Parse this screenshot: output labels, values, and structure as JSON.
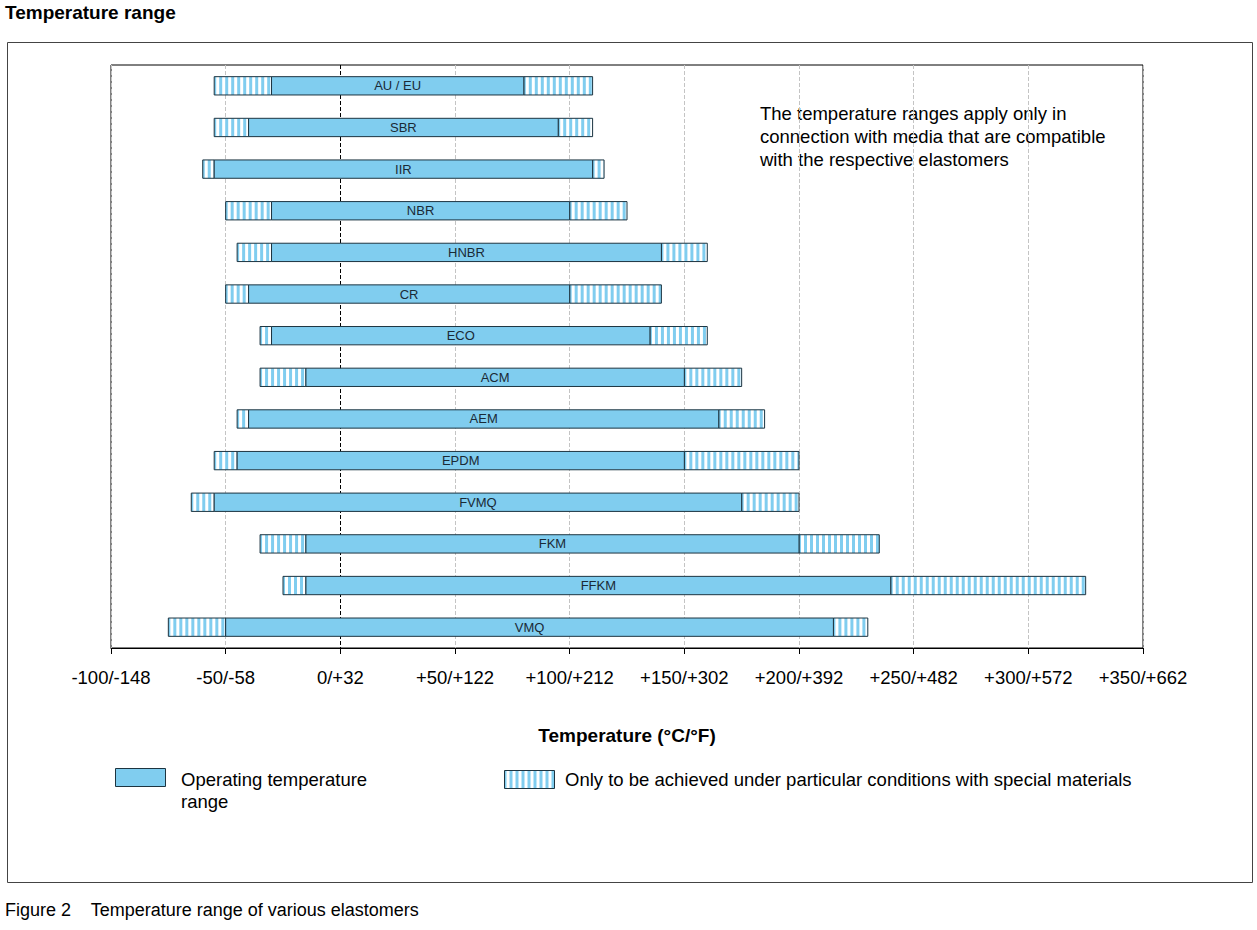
{
  "chart_data": {
    "type": "range",
    "orientation": "horizontal",
    "title": "Temperature range",
    "caption": "Figure 2    Temperature range of various elastomers",
    "xlabel": "Temperature (°C/°F)",
    "annotations": [
      "The temperature ranges apply only in connection with media that are compatible with the respective elastomers"
    ],
    "categories": [
      "AU / EU",
      "SBR",
      "IIR",
      "NBR",
      "HNBR",
      "CR",
      "ECO",
      "ACM",
      "AEM",
      "EPDM",
      "FVMQ",
      "FKM",
      "FFKM",
      "VMQ"
    ],
    "series": [
      {
        "name": "Operating temperature range",
        "color": "#80cdef",
        "marker": "solid",
        "ranges": [
          [
            -30,
            80
          ],
          [
            -40,
            95
          ],
          [
            -55,
            110
          ],
          [
            -30,
            100
          ],
          [
            -30,
            140
          ],
          [
            -40,
            100
          ],
          [
            -30,
            135
          ],
          [
            -15,
            150
          ],
          [
            -40,
            165
          ],
          [
            -45,
            150
          ],
          [
            -55,
            175
          ],
          [
            -15,
            200
          ],
          [
            -15,
            240
          ],
          [
            -50,
            215
          ]
        ]
      },
      {
        "name": "Only to be achieved under particular conditions with special materials",
        "color": "#80cdef",
        "marker": "hatched",
        "ranges": [
          [
            [
              -55,
              -30
            ],
            [
              80,
              110
            ]
          ],
          [
            [
              -55,
              -40
            ],
            [
              95,
              110
            ]
          ],
          [
            [
              -60,
              -55
            ],
            [
              110,
              115
            ]
          ],
          [
            [
              -50,
              -30
            ],
            [
              100,
              125
            ]
          ],
          [
            [
              -45,
              -30
            ],
            [
              140,
              160
            ]
          ],
          [
            [
              -50,
              -40
            ],
            [
              100,
              140
            ]
          ],
          [
            [
              -35,
              -30
            ],
            [
              135,
              160
            ]
          ],
          [
            [
              -35,
              -15
            ],
            [
              150,
              175
            ]
          ],
          [
            [
              -45,
              -40
            ],
            [
              165,
              185
            ]
          ],
          [
            [
              -55,
              -45
            ],
            [
              150,
              200
            ]
          ],
          [
            [
              -65,
              -55
            ],
            [
              175,
              200
            ]
          ],
          [
            [
              -35,
              -15
            ],
            [
              200,
              235
            ]
          ],
          [
            [
              -25,
              -15
            ],
            [
              240,
              325
            ]
          ],
          [
            [
              -75,
              -50
            ],
            [
              215,
              230
            ]
          ]
        ]
      }
    ],
    "xlim": [
      -100,
      350
    ],
    "xticks": [
      {
        "value": -100,
        "label": "-100/-148"
      },
      {
        "value": -50,
        "label": "-50/-58"
      },
      {
        "value": 0,
        "label": "0/+32"
      },
      {
        "value": 50,
        "label": "+50/+122"
      },
      {
        "value": 100,
        "label": "+100/+212"
      },
      {
        "value": 150,
        "label": "+150/+302"
      },
      {
        "value": 200,
        "label": "+200/+392"
      },
      {
        "value": 250,
        "label": "+250/+482"
      },
      {
        "value": 300,
        "label": "+300/+572"
      },
      {
        "value": 350,
        "label": "+350/+662"
      }
    ],
    "grid": true,
    "legend": "bottom",
    "tick_labels": "x"
  }
}
